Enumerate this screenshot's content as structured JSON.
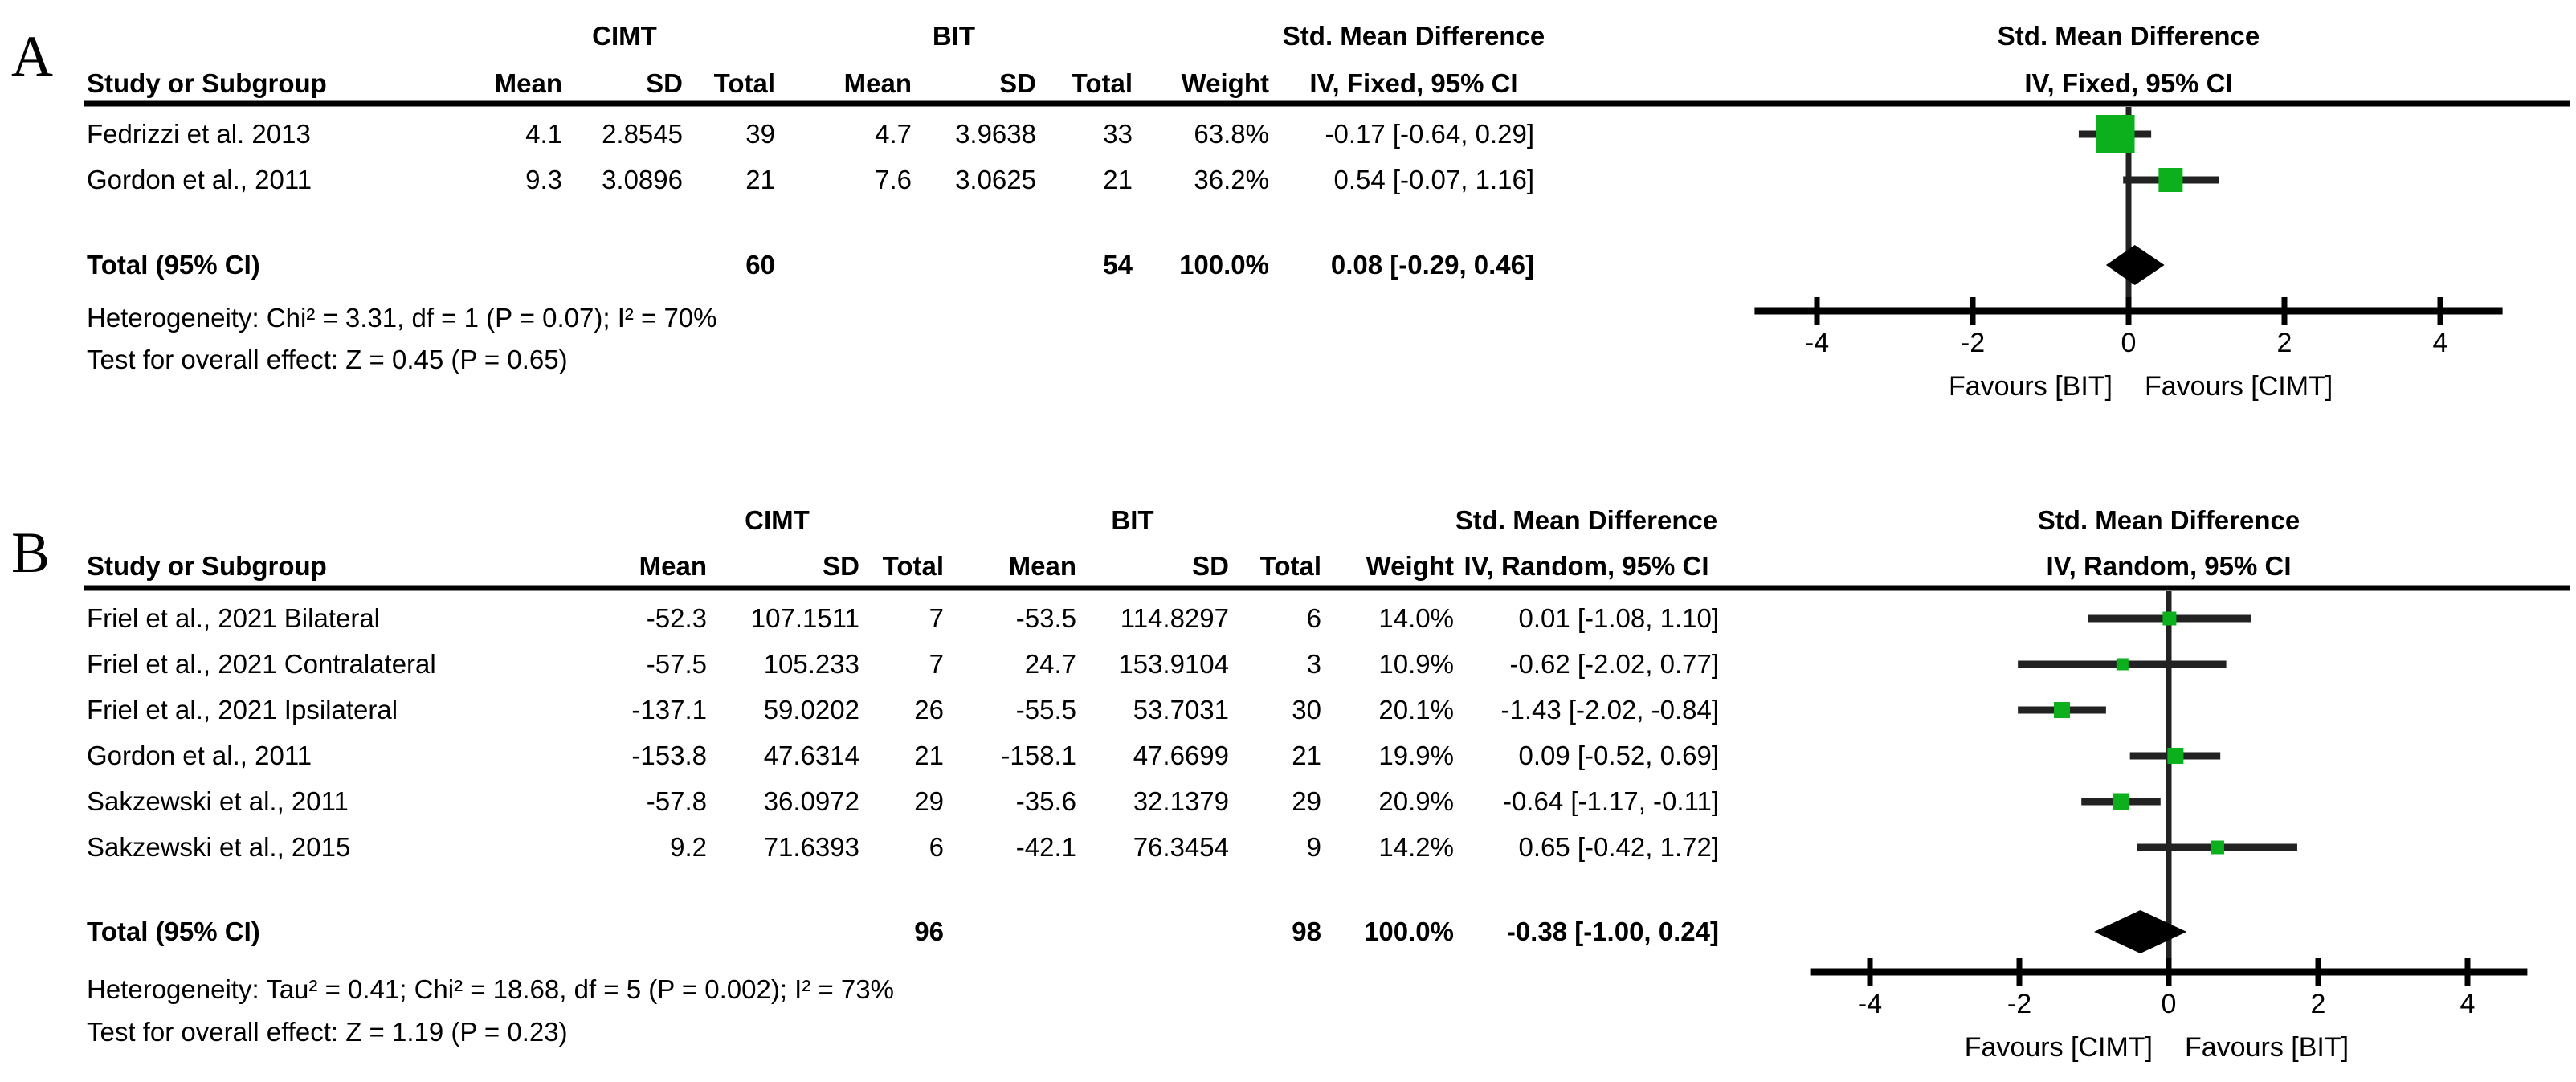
{
  "figure": {
    "background": "#ffffff",
    "marker_green": "#0cb01c",
    "ci_line_color": "#222222",
    "axis_color": "#000000"
  },
  "panel_a": {
    "label": "A",
    "groups": {
      "cimt": "CIMT",
      "bit": "BIT",
      "smd": "Std. Mean Difference"
    },
    "columns": {
      "study": "Study or Subgroup",
      "mean": "Mean",
      "sd": "SD",
      "total": "Total",
      "weight": "Weight"
    },
    "effect_col": "IV, Fixed, 95% CI",
    "plot_header_line1": "Std. Mean Difference",
    "plot_header_line2": "IV, Fixed, 95% CI",
    "rows": [
      {
        "study": "Fedrizzi et al. 2013",
        "m1": "4.1",
        "sd1": "2.8545",
        "t1": "39",
        "m2": "4.7",
        "sd2": "3.9638",
        "t2": "33",
        "w": "63.8%",
        "ci": "-0.17 [-0.64, 0.29]",
        "smd": -0.17,
        "lo": -0.64,
        "hi": 0.29,
        "weight": 63.8
      },
      {
        "study": "Gordon et al., 2011",
        "m1": "9.3",
        "sd1": "3.0896",
        "t1": "21",
        "m2": "7.6",
        "sd2": "3.0625",
        "t2": "21",
        "w": "36.2%",
        "ci": "0.54 [-0.07, 1.16]",
        "smd": 0.54,
        "lo": -0.07,
        "hi": 1.16,
        "weight": 36.2
      }
    ],
    "total_row": {
      "label": "Total (95% CI)",
      "t1": "60",
      "t2": "54",
      "w": "100.0%",
      "ci": "0.08 [-0.29, 0.46]",
      "smd": 0.08,
      "lo": -0.29,
      "hi": 0.46
    },
    "heterogeneity": "Heterogeneity: Chi² = 3.31, df = 1 (P = 0.07); I² = 70%",
    "overall_effect": "Test for overall effect: Z = 0.45 (P = 0.65)",
    "axis": {
      "ticks": [
        -4,
        -2,
        0,
        2,
        4
      ],
      "favours_left": "Favours [BIT]",
      "favours_right": "Favours [CIMT]"
    }
  },
  "panel_b": {
    "label": "B",
    "groups": {
      "cimt": "CIMT",
      "bit": "BIT",
      "smd": "Std. Mean Difference"
    },
    "columns": {
      "study": "Study or Subgroup",
      "mean": "Mean",
      "sd": "SD",
      "total": "Total",
      "weight": "Weight"
    },
    "effect_col": "IV, Random, 95% CI",
    "plot_header_line1": "Std. Mean Difference",
    "plot_header_line2": "IV, Random, 95% CI",
    "rows": [
      {
        "study": "Friel et al., 2021 Bilateral",
        "m1": "-52.3",
        "sd1": "107.1511",
        "t1": "7",
        "m2": "-53.5",
        "sd2": "114.8297",
        "t2": "6",
        "w": "14.0%",
        "ci": "0.01 [-1.08, 1.10]",
        "smd": 0.01,
        "lo": -1.08,
        "hi": 1.1,
        "weight": 14.0
      },
      {
        "study": "Friel et al., 2021 Contralateral",
        "m1": "-57.5",
        "sd1": "105.233",
        "t1": "7",
        "m2": "24.7",
        "sd2": "153.9104",
        "t2": "3",
        "w": "10.9%",
        "ci": "-0.62 [-2.02, 0.77]",
        "smd": -0.62,
        "lo": -2.02,
        "hi": 0.77,
        "weight": 10.9
      },
      {
        "study": "Friel et al., 2021 Ipsilateral",
        "m1": "-137.1",
        "sd1": "59.0202",
        "t1": "26",
        "m2": "-55.5",
        "sd2": "53.7031",
        "t2": "30",
        "w": "20.1%",
        "ci": "-1.43 [-2.02, -0.84]",
        "smd": -1.43,
        "lo": -2.02,
        "hi": -0.84,
        "weight": 20.1
      },
      {
        "study": "Gordon et al., 2011",
        "m1": "-153.8",
        "sd1": "47.6314",
        "t1": "21",
        "m2": "-158.1",
        "sd2": "47.6699",
        "t2": "21",
        "w": "19.9%",
        "ci": "0.09 [-0.52, 0.69]",
        "smd": 0.09,
        "lo": -0.52,
        "hi": 0.69,
        "weight": 19.9
      },
      {
        "study": "Sakzewski et al., 2011",
        "m1": "-57.8",
        "sd1": "36.0972",
        "t1": "29",
        "m2": "-35.6",
        "sd2": "32.1379",
        "t2": "29",
        "w": "20.9%",
        "ci": "-0.64 [-1.17, -0.11]",
        "smd": -0.64,
        "lo": -1.17,
        "hi": -0.11,
        "weight": 20.9
      },
      {
        "study": "Sakzewski et al., 2015",
        "m1": "9.2",
        "sd1": "71.6393",
        "t1": "6",
        "m2": "-42.1",
        "sd2": "76.3454",
        "t2": "9",
        "w": "14.2%",
        "ci": "0.65 [-0.42, 1.72]",
        "smd": 0.65,
        "lo": -0.42,
        "hi": 1.72,
        "weight": 14.2
      }
    ],
    "total_row": {
      "label": "Total (95% CI)",
      "t1": "96",
      "t2": "98",
      "w": "100.0%",
      "ci": "-0.38 [-1.00, 0.24]",
      "smd": -0.38,
      "lo": -1.0,
      "hi": 0.24
    },
    "heterogeneity": "Heterogeneity: Tau² = 0.41; Chi² = 18.68, df = 5 (P = 0.002); I² = 73%",
    "overall_effect": "Test for overall effect: Z = 1.19 (P = 0.23)",
    "axis": {
      "ticks": [
        -4,
        -2,
        0,
        2,
        4
      ],
      "favours_left": "Favours [CIMT]",
      "favours_right": "Favours [BIT]"
    }
  },
  "chart_data": [
    {
      "type": "scatter",
      "subtype": "forest_plot",
      "panel": "A",
      "title": "Std. Mean Difference, IV, Fixed, 95% CI",
      "effect_model": "IV, Fixed, 95% CI",
      "xlim": [
        -4,
        4
      ],
      "x_ticks": [
        -4,
        -2,
        0,
        2,
        4
      ],
      "xlabel_left": "Favours [BIT]",
      "xlabel_right": "Favours [CIMT]",
      "studies": [
        {
          "name": "Fedrizzi et al. 2013",
          "cimt_mean": 4.1,
          "cimt_sd": 2.8545,
          "cimt_total": 39,
          "bit_mean": 4.7,
          "bit_sd": 3.9638,
          "bit_total": 33,
          "weight_pct": 63.8,
          "smd": -0.17,
          "ci": [
            -0.64,
            0.29
          ]
        },
        {
          "name": "Gordon et al., 2011",
          "cimt_mean": 9.3,
          "cimt_sd": 3.0896,
          "cimt_total": 21,
          "bit_mean": 7.6,
          "bit_sd": 3.0625,
          "bit_total": 21,
          "weight_pct": 36.2,
          "smd": 0.54,
          "ci": [
            -0.07,
            1.16
          ]
        }
      ],
      "total": {
        "cimt_total": 60,
        "bit_total": 54,
        "weight_pct": 100.0,
        "smd": 0.08,
        "ci": [
          -0.29,
          0.46
        ]
      },
      "heterogeneity": {
        "chi2": 3.31,
        "df": 1,
        "p": 0.07,
        "i2_pct": 70
      },
      "overall_effect": {
        "z": 0.45,
        "p": 0.65
      }
    },
    {
      "type": "scatter",
      "subtype": "forest_plot",
      "panel": "B",
      "title": "Std. Mean Difference, IV, Random, 95% CI",
      "effect_model": "IV, Random, 95% CI",
      "xlim": [
        -4,
        4
      ],
      "x_ticks": [
        -4,
        -2,
        0,
        2,
        4
      ],
      "xlabel_left": "Favours [CIMT]",
      "xlabel_right": "Favours [BIT]",
      "studies": [
        {
          "name": "Friel et al., 2021 Bilateral",
          "cimt_mean": -52.3,
          "cimt_sd": 107.1511,
          "cimt_total": 7,
          "bit_mean": -53.5,
          "bit_sd": 114.8297,
          "bit_total": 6,
          "weight_pct": 14.0,
          "smd": 0.01,
          "ci": [
            -1.08,
            1.1
          ]
        },
        {
          "name": "Friel et al., 2021 Contralateral",
          "cimt_mean": -57.5,
          "cimt_sd": 105.233,
          "cimt_total": 7,
          "bit_mean": 24.7,
          "bit_sd": 153.9104,
          "bit_total": 3,
          "weight_pct": 10.9,
          "smd": -0.62,
          "ci": [
            -2.02,
            0.77
          ]
        },
        {
          "name": "Friel et al., 2021 Ipsilateral",
          "cimt_mean": -137.1,
          "cimt_sd": 59.0202,
          "cimt_total": 26,
          "bit_mean": -55.5,
          "bit_sd": 53.7031,
          "bit_total": 30,
          "weight_pct": 20.1,
          "smd": -1.43,
          "ci": [
            -2.02,
            -0.84
          ]
        },
        {
          "name": "Gordon et al., 2011",
          "cimt_mean": -153.8,
          "cimt_sd": 47.6314,
          "cimt_total": 21,
          "bit_mean": -158.1,
          "bit_sd": 47.6699,
          "bit_total": 21,
          "weight_pct": 19.9,
          "smd": 0.09,
          "ci": [
            -0.52,
            0.69
          ]
        },
        {
          "name": "Sakzewski et al., 2011",
          "cimt_mean": -57.8,
          "cimt_sd": 36.0972,
          "cimt_total": 29,
          "bit_mean": -35.6,
          "bit_sd": 32.1379,
          "bit_total": 29,
          "weight_pct": 20.9,
          "smd": -0.64,
          "ci": [
            -1.17,
            -0.11
          ]
        },
        {
          "name": "Sakzewski et al., 2015",
          "cimt_mean": 9.2,
          "cimt_sd": 71.6393,
          "cimt_total": 6,
          "bit_mean": -42.1,
          "bit_sd": 76.3454,
          "bit_total": 9,
          "weight_pct": 14.2,
          "smd": 0.65,
          "ci": [
            -0.42,
            1.72
          ]
        }
      ],
      "total": {
        "cimt_total": 96,
        "bit_total": 98,
        "weight_pct": 100.0,
        "smd": -0.38,
        "ci": [
          -1.0,
          0.24
        ]
      },
      "heterogeneity": {
        "tau2": 0.41,
        "chi2": 18.68,
        "df": 5,
        "p": 0.002,
        "i2_pct": 73
      },
      "overall_effect": {
        "z": 1.19,
        "p": 0.23
      }
    }
  ]
}
